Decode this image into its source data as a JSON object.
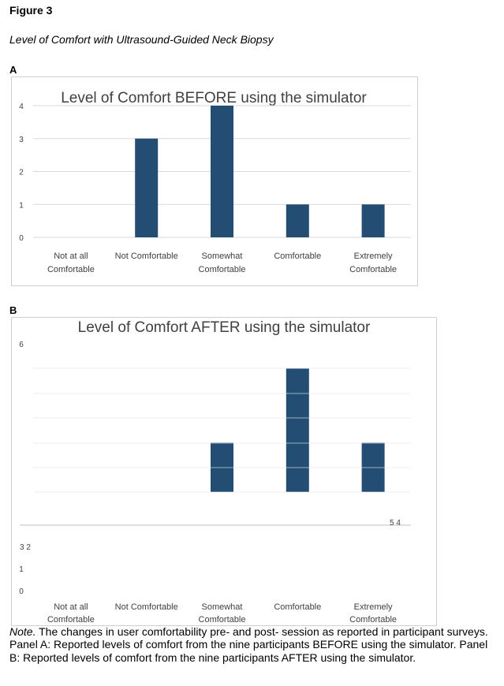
{
  "figure_label": "Figure 3",
  "figure_title": "Level of Comfort with Ultrasound-Guided Neck Biopsy",
  "panels": [
    {
      "letter": "A",
      "title": "Level of Comfort BEFORE using the simulator"
    },
    {
      "letter": "B",
      "title": "Level of Comfort AFTER using the simulator"
    }
  ],
  "chart_data": [
    {
      "type": "bar",
      "title": "Level of Comfort BEFORE using the simulator",
      "categories": [
        "Not at all Comfortable",
        "Not Comfortable",
        "Somewhat Comfortable",
        "Comfortable",
        "Extremely Comfortable"
      ],
      "values": [
        0,
        3,
        4,
        1,
        1
      ],
      "ylim": [
        0,
        4
      ],
      "yticks": [
        "0",
        "1",
        "2",
        "3",
        "4"
      ],
      "bar_color": "#234d73",
      "grid": true
    },
    {
      "type": "bar",
      "title": "Level of Comfort AFTER using the simulator",
      "categories": [
        "Not at all Comfortable",
        "Not Comfortable",
        "Somewhat Comfortable",
        "Comfortable",
        "Extremely Comfortable"
      ],
      "values": [
        0,
        0,
        2,
        5,
        2
      ],
      "ylim": [
        0,
        6
      ],
      "yticks": [
        "6",
        "5 4",
        "3 2",
        "1",
        "0"
      ],
      "bar_color": "#234d73",
      "grid": true
    }
  ],
  "note": {
    "lead": "Note.",
    "text": " The changes in user comfortability pre- and post- session as reported in participant surveys. Panel A: Reported levels of comfort from the nine participants BEFORE using the simulator. Panel B: Reported levels of comfort from the nine participants AFTER using the simulator."
  }
}
